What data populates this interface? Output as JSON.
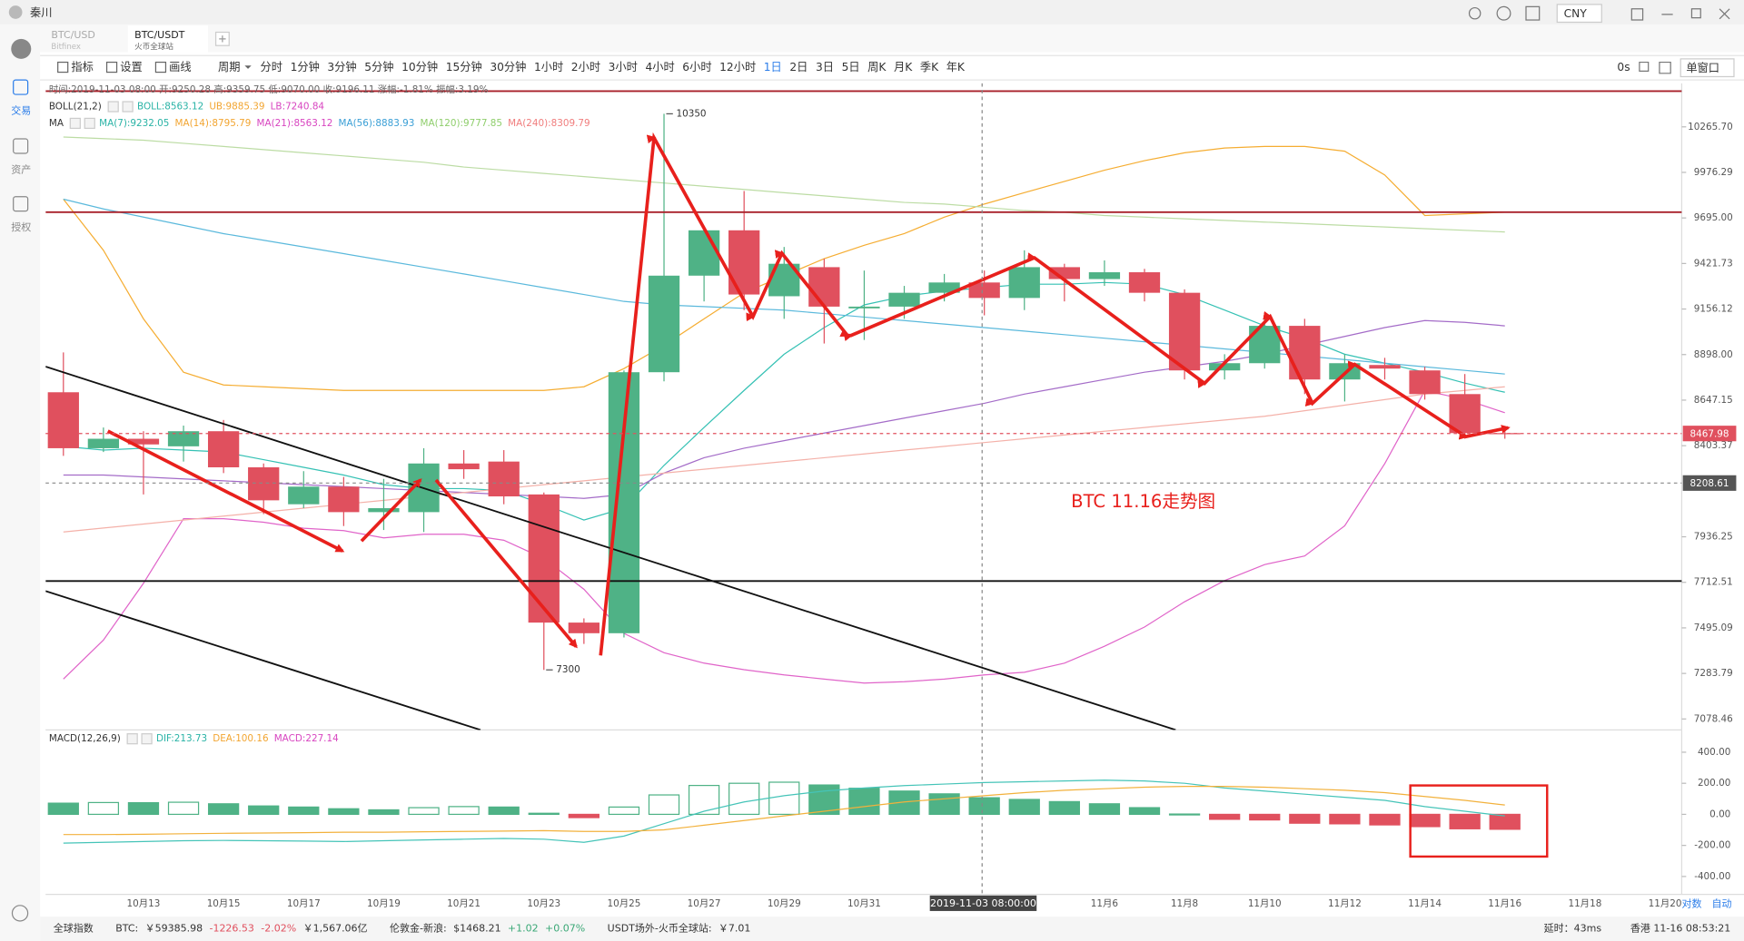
{
  "window": {
    "user": "秦川",
    "currency": "CNY"
  },
  "tabs": [
    {
      "pair": "BTC/USD",
      "exchange": "Bitfinex"
    },
    {
      "pair": "BTC/USDT",
      "exchange": "火币全球站"
    }
  ],
  "active_tab": 1,
  "sidebar": [
    "交易",
    "资产",
    "授权"
  ],
  "toolbar": {
    "tools": [
      "指标",
      "设置",
      "画线"
    ],
    "period_label": "周期",
    "periods": [
      "分时",
      "1分钟",
      "3分钟",
      "5分钟",
      "10分钟",
      "15分钟",
      "30分钟",
      "1小时",
      "2小时",
      "3小时",
      "4小时",
      "6小时",
      "12小时",
      "1日",
      "2日",
      "3日",
      "5日",
      "周K",
      "月K",
      "季K",
      "年K"
    ],
    "active_period": "1日",
    "refresh": "0s",
    "window_mode": "单窗口"
  },
  "info_line": "时间:2019-11-03 08:00  开:9250.28  高:9359.75  低:9070.00  收:9196.11  涨幅:-1.81%  振幅:3.19%",
  "indicators": {
    "boll": {
      "label": "BOLL(21,2)",
      "items": [
        {
          "text": "BOLL:8563.12",
          "color": "#2ab3a6"
        },
        {
          "text": "UB:9885.39",
          "color": "#f2a531"
        },
        {
          "text": "LB:7240.84",
          "color": "#d845c0"
        }
      ]
    },
    "ma": {
      "label": "MA",
      "items": [
        {
          "text": "MA(7):9232.05",
          "color": "#2ab3a6"
        },
        {
          "text": "MA(14):8795.79",
          "color": "#f2a531"
        },
        {
          "text": "MA(21):8563.12",
          "color": "#d845c0"
        },
        {
          "text": "MA(56):8883.93",
          "color": "#3a9fd6"
        },
        {
          "text": "MA(120):9777.85",
          "color": "#8fce6c"
        },
        {
          "text": "MA(240):8309.79",
          "color": "#f07d7d"
        }
      ]
    },
    "macd": {
      "label": "MACD(12,26,9)",
      "items": [
        {
          "text": "DIF:213.73",
          "color": "#2ab3a6"
        },
        {
          "text": "DEA:100.16",
          "color": "#f2a531"
        },
        {
          "text": "MACD:227.14",
          "color": "#d845c0"
        }
      ]
    }
  },
  "annotation": "BTC 11.16走势图",
  "cursor_label": "2019-11-03 08:00:00",
  "scale_buttons": [
    "对数",
    "自动"
  ],
  "chart_data": [
    {
      "type": "candlestick",
      "log": true,
      "ylim": [
        7030,
        10550
      ],
      "yticks": [
        {
          "value": 10265.7,
          "label": "10265.70"
        },
        9976.29,
        {
          "value": 9695,
          "label": "9695.00"
        },
        9421.73,
        9156.12,
        {
          "value": 8898,
          "label": "8898.00"
        },
        8647.15,
        8403.37,
        7936.25,
        7712.51,
        7495.09,
        7283.79,
        7078.46
      ],
      "up_color": "#4fb286",
      "down_color": "#e0505e",
      "open": [
        8690,
        8390,
        8440,
        8400,
        8480,
        8290,
        8100,
        8190,
        8060,
        8060,
        8310,
        8320,
        8150,
        7520,
        7470,
        8800,
        9350,
        9620,
        9230,
        9400,
        9160,
        9170,
        9250,
        9310,
        9220,
        9400,
        9330,
        9370,
        9250,
        8810,
        8850,
        9060,
        8760,
        8840,
        8810,
        8680,
        8470,
        null,
        null,
        null,
        null
      ],
      "high": [
        8910,
        8500,
        8480,
        8510,
        8540,
        8310,
        8270,
        8240,
        8230,
        8390,
        8380,
        8380,
        8160,
        7540,
        8810,
        10350,
        9630,
        9860,
        9520,
        9450,
        9380,
        9290,
        9360,
        9380,
        9500,
        9420,
        9440,
        9390,
        9270,
        8900,
        9130,
        9100,
        8900,
        8880,
        8830,
        8790,
        8490,
        null,
        null,
        null,
        null
      ],
      "low": [
        8350,
        8370,
        8150,
        8320,
        8260,
        8050,
        8080,
        7990,
        7970,
        7960,
        8230,
        8100,
        7300,
        7420,
        7450,
        8750,
        9200,
        9150,
        9100,
        8960,
        8980,
        9100,
        9200,
        9120,
        9150,
        9200,
        9290,
        9200,
        8760,
        8760,
        8820,
        8680,
        8640,
        8760,
        8650,
        8440,
        8440,
        null,
        null,
        null,
        null
      ],
      "close": [
        8390,
        8440,
        8410,
        8480,
        8290,
        8120,
        8190,
        8060,
        8080,
        8310,
        8280,
        8140,
        7520,
        7470,
        8800,
        9350,
        9620,
        9240,
        9420,
        9170,
        9170,
        9250,
        9310,
        9220,
        9400,
        9330,
        9370,
        9250,
        8810,
        8850,
        9060,
        8760,
        8850,
        8820,
        8680,
        8470,
        8467.98,
        null,
        null,
        null,
        null
      ],
      "lines": [
        {
          "color": "#f5ad32",
          "values": [
            9810,
            9500,
            9100,
            8800,
            8730,
            8720,
            8710,
            8700,
            8700,
            8700,
            8700,
            8700,
            8700,
            8720,
            8820,
            8950,
            9100,
            9250,
            9350,
            9450,
            9530,
            9600,
            9700,
            9780,
            9850,
            9920,
            9990,
            10050,
            10100,
            10130,
            10140,
            10140,
            10110,
            9960,
            9710,
            9720,
            9730,
            null,
            null,
            null,
            null
          ]
        },
        {
          "color": "#e064c9",
          "values": [
            7258,
            7438,
            7708,
            8027,
            8027,
            8009,
            7979,
            7967,
            7931,
            7949,
            7949,
            7919,
            7829,
            7679,
            7469,
            7379,
            7331,
            7301,
            7277,
            7258,
            7240,
            7246,
            7258,
            7277,
            7289,
            7331,
            7409,
            7499,
            7619,
            7721,
            7799,
            7841,
            7991,
            8309,
            8699,
            8651,
            8579,
            null,
            null,
            null,
            null
          ]
        },
        {
          "color": "#35c1b4",
          "values": [
            8400,
            8380,
            8390,
            8380,
            8370,
            8330,
            8290,
            8250,
            8200,
            8180,
            8180,
            8170,
            8100,
            8020,
            8080,
            8300,
            8500,
            8700,
            8900,
            9050,
            9180,
            9230,
            9260,
            9280,
            9300,
            9300,
            9310,
            9300,
            9240,
            9150,
            9060,
            8990,
            8900,
            8850,
            8800,
            8740,
            8690,
            null,
            null,
            null,
            null
          ]
        },
        {
          "color": "#a46cc8",
          "values": [
            8250,
            8250,
            8240,
            8230,
            8220,
            8210,
            8200,
            8190,
            8180,
            8170,
            8160,
            8150,
            8140,
            8130,
            8150,
            8260,
            8340,
            8390,
            8430,
            8470,
            8510,
            8550,
            8590,
            8630,
            8680,
            8720,
            8760,
            8800,
            8830,
            8860,
            8900,
            8950,
            9000,
            9050,
            9090,
            9080,
            9060,
            null,
            null,
            null,
            null
          ]
        },
        {
          "color": "#5bb9dc",
          "values": [
            9810,
            9750,
            9700,
            9650,
            9600,
            9560,
            9520,
            9480,
            9440,
            9400,
            9360,
            9320,
            9280,
            9240,
            9200,
            9180,
            9170,
            9160,
            9150,
            9130,
            9110,
            9090,
            9070,
            9050,
            9030,
            9010,
            8990,
            8970,
            8950,
            8930,
            8910,
            8890,
            8870,
            8850,
            8830,
            8810,
            8790,
            null,
            null,
            null,
            null
          ]
        },
        {
          "color": "#bcdca4",
          "values": [
            10200,
            10190,
            10180,
            10160,
            10140,
            10120,
            10100,
            10080,
            10060,
            10040,
            10010,
            9990,
            9970,
            9950,
            9930,
            9910,
            9890,
            9870,
            9850,
            9830,
            9810,
            9790,
            9780,
            9760,
            9740,
            9730,
            9710,
            9700,
            9690,
            9680,
            9670,
            9660,
            9650,
            9640,
            9630,
            9620,
            9610,
            null,
            null,
            null,
            null
          ]
        },
        {
          "color": "#f4b1a9",
          "values": [
            7960,
            7980,
            8000,
            8020,
            8040,
            8060,
            8080,
            8100,
            8120,
            8140,
            8160,
            8180,
            8200,
            8220,
            8240,
            8260,
            8280,
            8300,
            8320,
            8340,
            8360,
            8380,
            8400,
            8420,
            8440,
            8460,
            8480,
            8500,
            8520,
            8540,
            8560,
            8590,
            8620,
            8650,
            8680,
            8700,
            8720,
            null,
            null,
            null,
            null
          ]
        }
      ],
      "high_mark": 10350,
      "low_mark": 7300,
      "last_price": 8467.98,
      "cursor_price": 8208.61
    },
    {
      "type": "bar",
      "ylim": [
        -515,
        515
      ],
      "yticks": [
        {
          "value": 400,
          "label": "400.00"
        },
        {
          "value": 200,
          "label": "200.00"
        },
        {
          "value": 0,
          "label": "0.00"
        },
        {
          "value": -200,
          "label": "-200.00"
        },
        {
          "value": -400,
          "label": "-400.00"
        }
      ],
      "categories": [
        null,
        null,
        "10月13",
        null,
        "10月15",
        null,
        "10月17",
        null,
        "10月19",
        null,
        "10月21",
        null,
        "10月23",
        null,
        "10月25",
        null,
        "10月27",
        null,
        "10月29",
        null,
        "10月31",
        null,
        null,
        null,
        null,
        null,
        "11月6",
        null,
        "11月8",
        null,
        "11月10",
        null,
        "11月12",
        null,
        "11月14",
        null,
        "11月16",
        null,
        "11月18",
        null,
        "11月20"
      ],
      "up_color": "#4fb286",
      "down_color": "#e0505e",
      "values": [
        72,
        76,
        75,
        78,
        68,
        54,
        47,
        36,
        29,
        43,
        50,
        47,
        7,
        -21,
        47,
        125,
        186,
        200,
        207,
        189,
        168,
        150,
        132,
        107,
        96,
        82,
        68,
        43,
        2,
        -32,
        -36,
        -57,
        -61,
        -68,
        -79,
        -93,
        -96,
        null,
        null,
        null,
        null
      ],
      "series": [
        {
          "color": "#45c4b8",
          "values": [
            -185,
            -180,
            -175,
            -170,
            -168,
            -170,
            -172,
            -175,
            -170,
            -165,
            -160,
            -155,
            -160,
            -180,
            -140,
            -60,
            20,
            80,
            120,
            150,
            170,
            185,
            195,
            205,
            210,
            215,
            220,
            215,
            200,
            170,
            150,
            130,
            110,
            90,
            50,
            20,
            -10,
            null,
            null,
            null,
            null
          ]
        },
        {
          "color": "#f2b13c",
          "values": [
            -130,
            -130,
            -128,
            -125,
            -122,
            -120,
            -118,
            -115,
            -115,
            -112,
            -110,
            -108,
            -105,
            -110,
            -110,
            -100,
            -70,
            -40,
            -10,
            20,
            50,
            80,
            100,
            120,
            140,
            155,
            165,
            175,
            180,
            180,
            175,
            165,
            155,
            140,
            115,
            90,
            60,
            null,
            null,
            null,
            null
          ]
        }
      ]
    }
  ],
  "status_bar": {
    "left": [
      {
        "text": "全球指数",
        "color": "#333"
      },
      {
        "text": "BTC:",
        "color": "#333"
      },
      {
        "text": "￥59385.98",
        "color": "#333"
      },
      {
        "text": "-1226.53",
        "color": "#e0505e"
      },
      {
        "text": "-2.02%",
        "color": "#e0505e"
      },
      {
        "text": "￥1,567.06亿",
        "color": "#333"
      },
      {
        "text": "伦敦金-新浪:",
        "color": "#333"
      },
      {
        "text": "$1468.21",
        "color": "#333"
      },
      {
        "text": "+1.02",
        "color": "#3aa876"
      },
      {
        "text": "+0.07%",
        "color": "#3aa876"
      },
      {
        "text": "USDT场外-火币全球站:",
        "color": "#333"
      },
      {
        "text": "￥7.01",
        "color": "#333"
      }
    ],
    "right": [
      {
        "text": "延时：43ms",
        "color": "#333"
      },
      {
        "text": "香港 11-16 08:53:21",
        "color": "#333"
      }
    ]
  }
}
